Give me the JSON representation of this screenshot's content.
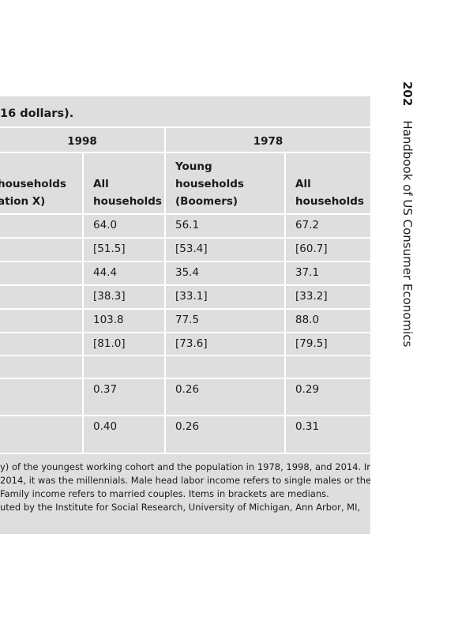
{
  "running_head": {
    "page": "202",
    "title": "Handbook of US Consumer Economics"
  },
  "table": {
    "caption": "16 dollars).",
    "groups": [
      "1998",
      "1978"
    ],
    "columns": [
      [
        "households",
        "ation X)"
      ],
      [
        "All",
        "households"
      ],
      [
        "Young",
        "households",
        "(Boomers)"
      ],
      [
        "All",
        "households"
      ]
    ],
    "rows": [
      [
        "64.0",
        "56.1",
        "67.2"
      ],
      [
        "[51.5]",
        "[53.4]",
        "[60.7]"
      ],
      [
        "44.4",
        "35.4",
        "37.1"
      ],
      [
        "[38.3]",
        "[33.1]",
        "[33.2]"
      ],
      [
        "103.8",
        "77.5",
        "88.0"
      ],
      [
        "[81.0]",
        "[73.6]",
        "[79.5]"
      ],
      [
        "0.37",
        "0.26",
        "0.29"
      ],
      [
        "0.40",
        "0.26",
        "0.31"
      ]
    ],
    "notes": [
      "y) of the youngest working cohort and the population in 1978, 1998, and 2014. In",
      "2014, it was the millennials. Male head labor income refers to single males or the",
      "Family income refers to married couples. Items in brackets are medians.",
      "uted by the Institute for Social Research, University of Michigan, Ann Arbor, MI,"
    ]
  }
}
